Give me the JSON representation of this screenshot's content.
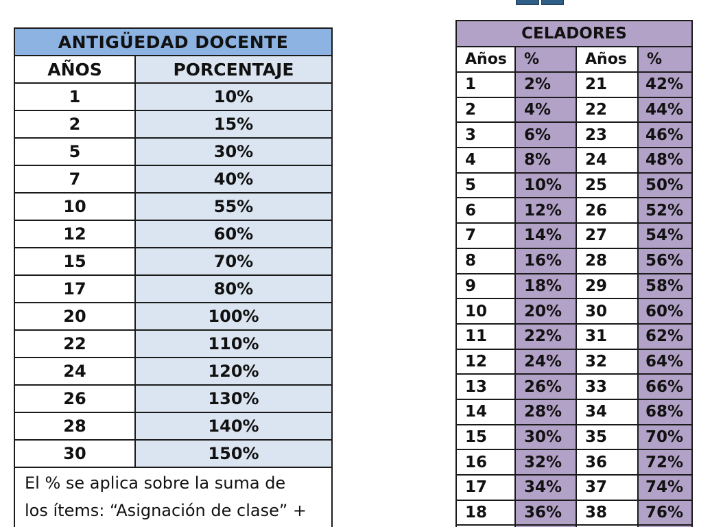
{
  "colors": {
    "antiguedad_title_bg": "#8db3e2",
    "antiguedad_value_bg": "#dbe5f1",
    "celadores_bg": "#b3a2c7",
    "border": "#1a1a1a",
    "icon_blue": "#2f5f86"
  },
  "top_icon": "blue-book-icon",
  "antiguedad_docente": {
    "title": "ANTIGÜEDAD DOCENTE",
    "headers": [
      "AÑOS",
      "PORCENTAJE"
    ],
    "rows": [
      {
        "anos": "1",
        "porcentaje": "10%"
      },
      {
        "anos": "2",
        "porcentaje": "15%"
      },
      {
        "anos": "5",
        "porcentaje": "30%"
      },
      {
        "anos": "7",
        "porcentaje": "40%"
      },
      {
        "anos": "10",
        "porcentaje": "55%"
      },
      {
        "anos": "12",
        "porcentaje": "60%"
      },
      {
        "anos": "15",
        "porcentaje": "70%"
      },
      {
        "anos": "17",
        "porcentaje": "80%"
      },
      {
        "anos": "20",
        "porcentaje": "100%"
      },
      {
        "anos": "22",
        "porcentaje": "110%"
      },
      {
        "anos": "24",
        "porcentaje": "120%"
      },
      {
        "anos": "26",
        "porcentaje": "130%"
      },
      {
        "anos": "28",
        "porcentaje": "140%"
      },
      {
        "anos": "30",
        "porcentaje": "150%"
      }
    ],
    "note_line1": "El % se aplica sobre la suma de",
    "note_line2": "los ítems: “Asignación de clase” +"
  },
  "celadores": {
    "title": "CELADORES",
    "headers": [
      "Años",
      "%",
      "Años",
      "%"
    ],
    "rows": [
      {
        "a1": "1",
        "p1": "2%",
        "a2": "21",
        "p2": "42%"
      },
      {
        "a1": "2",
        "p1": "4%",
        "a2": "22",
        "p2": "44%"
      },
      {
        "a1": "3",
        "p1": "6%",
        "a2": "23",
        "p2": "46%"
      },
      {
        "a1": "4",
        "p1": "8%",
        "a2": "24",
        "p2": "48%"
      },
      {
        "a1": "5",
        "p1": "10%",
        "a2": "25",
        "p2": "50%"
      },
      {
        "a1": "6",
        "p1": "12%",
        "a2": "26",
        "p2": "52%"
      },
      {
        "a1": "7",
        "p1": "14%",
        "a2": "27",
        "p2": "54%"
      },
      {
        "a1": "8",
        "p1": "16%",
        "a2": "28",
        "p2": "56%"
      },
      {
        "a1": "9",
        "p1": "18%",
        "a2": "29",
        "p2": "58%"
      },
      {
        "a1": "10",
        "p1": "20%",
        "a2": "30",
        "p2": "60%"
      },
      {
        "a1": "11",
        "p1": "22%",
        "a2": "31",
        "p2": "62%"
      },
      {
        "a1": "12",
        "p1": "24%",
        "a2": "32",
        "p2": "64%"
      },
      {
        "a1": "13",
        "p1": "26%",
        "a2": "33",
        "p2": "66%"
      },
      {
        "a1": "14",
        "p1": "28%",
        "a2": "34",
        "p2": "68%"
      },
      {
        "a1": "15",
        "p1": "30%",
        "a2": "35",
        "p2": "70%"
      },
      {
        "a1": "16",
        "p1": "32%",
        "a2": "36",
        "p2": "72%"
      },
      {
        "a1": "17",
        "p1": "34%",
        "a2": "37",
        "p2": "74%"
      },
      {
        "a1": "18",
        "p1": "36%",
        "a2": "38",
        "p2": "76%"
      },
      {
        "a1": "",
        "p1": "",
        "a2": "",
        "p2": ""
      }
    ]
  }
}
